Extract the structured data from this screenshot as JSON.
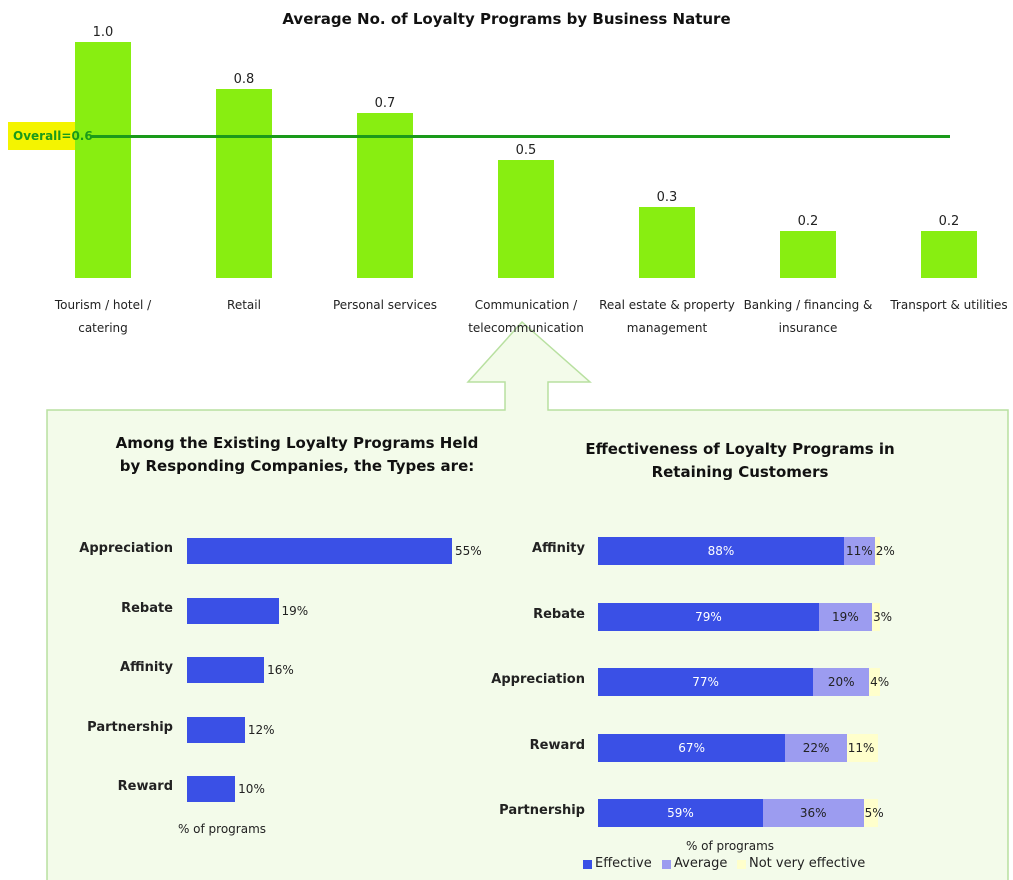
{
  "chart_data": [
    {
      "type": "bar",
      "title": "Average No. of Loyalty Programs by Business Nature",
      "categories": [
        "Tourism / hotel / catering",
        "Retail",
        "Personal services",
        "Communication / telecommunication",
        "Real estate & property management",
        "Banking / financing & insurance",
        "Transport & utilities"
      ],
      "values": [
        1.0,
        0.8,
        0.7,
        0.5,
        0.3,
        0.2,
        0.2
      ],
      "value_labels": [
        "1.0",
        "0.8",
        "0.7",
        "0.5",
        "0.3",
        "0.2",
        "0.2"
      ],
      "color": "#88ee11",
      "reference_line": {
        "value": 0.6,
        "label": "Overall=0.6",
        "color": "#1a9a1a"
      }
    },
    {
      "type": "hbar",
      "title": "Among the Existing Loyalty Programs Held by Responding Companies, the Types are:",
      "categories": [
        "Appreciation",
        "Rebate",
        "Affinity",
        "Partnership",
        "Reward"
      ],
      "values": [
        55,
        19,
        16,
        12,
        10
      ],
      "value_labels": [
        "55%",
        "19%",
        "16%",
        "12%",
        "10%"
      ],
      "color": "#3a50e6",
      "xlabel": "% of programs"
    },
    {
      "type": "stacked_hbar",
      "title": "Effectiveness of Loyalty Programs in Retaining Customers",
      "categories": [
        "Affinity",
        "Rebate",
        "Appreciation",
        "Reward",
        "Partnership"
      ],
      "series": [
        {
          "name": "Effective",
          "color": "#3a50e6",
          "values": [
            88,
            79,
            77,
            67,
            59
          ],
          "value_labels": [
            "88%",
            "79%",
            "77%",
            "67%",
            "59%"
          ]
        },
        {
          "name": "Average",
          "color": "#9c9cf0",
          "values": [
            11,
            19,
            20,
            22,
            36
          ],
          "value_labels": [
            "11%",
            "19%",
            "20%",
            "22%",
            "36%"
          ]
        },
        {
          "name": "Not very effective",
          "color": "#ffffcc",
          "values": [
            2,
            3,
            4,
            11,
            5
          ],
          "value_labels": [
            "2%",
            "3%",
            "4%",
            "11%",
            "5%"
          ]
        }
      ],
      "xlabel": "% of programs"
    }
  ]
}
